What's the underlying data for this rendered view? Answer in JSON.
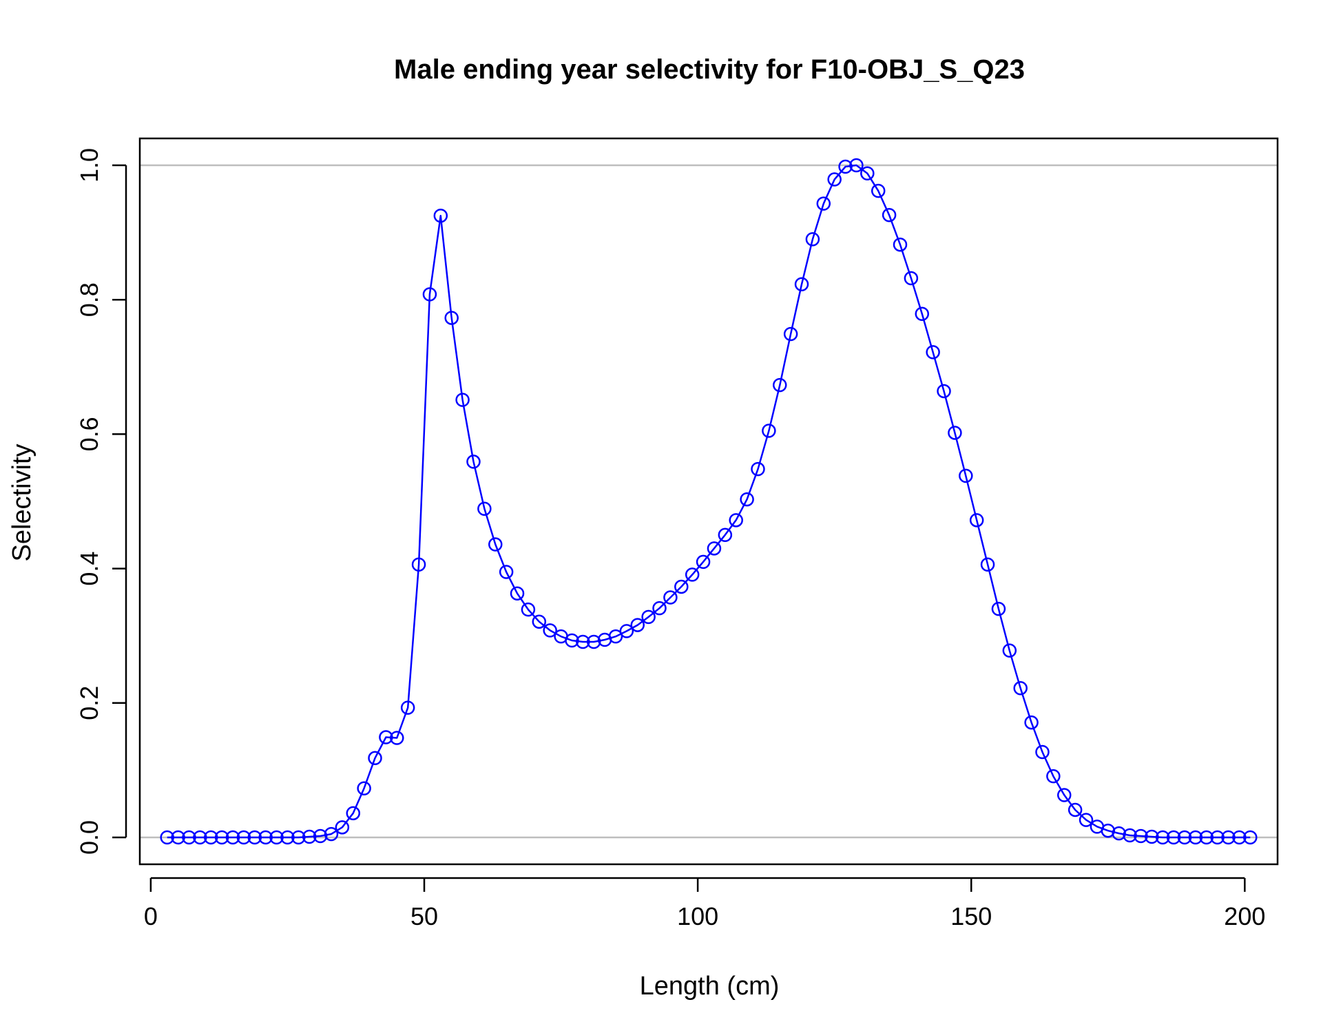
{
  "chart_data": {
    "type": "line",
    "title": "Male ending year selectivity for F10-OBJ_S_Q23",
    "xlabel": "Length (cm)",
    "ylabel": "Selectivity",
    "xlim": [
      -2,
      206
    ],
    "ylim": [
      -0.04,
      1.04
    ],
    "x_ticks": [
      0,
      50,
      100,
      150,
      200
    ],
    "y_ticks": [
      0.0,
      0.2,
      0.4,
      0.6,
      0.8,
      1.0
    ],
    "x_tick_labels": [
      "0",
      "50",
      "100",
      "150",
      "200"
    ],
    "y_tick_labels": [
      "0.0",
      "0.2",
      "0.4",
      "0.6",
      "0.8",
      "1.0"
    ],
    "reference_lines": [
      0,
      1
    ],
    "grid": false,
    "line_color": "#0000ff",
    "reference_line_color": "#bebebe",
    "marker": "open-circle",
    "series": [
      {
        "x": [
          3,
          5,
          7,
          9,
          11,
          13,
          15,
          17,
          19,
          21,
          23,
          25,
          27,
          29,
          31,
          33,
          35,
          37,
          39,
          41,
          43,
          45,
          47,
          49,
          51,
          53,
          55,
          57,
          59,
          61,
          63,
          65,
          67,
          69,
          71,
          73,
          75,
          77,
          79,
          81,
          83,
          85,
          87,
          89,
          91,
          93,
          95,
          97,
          99,
          101,
          103,
          105,
          107,
          109,
          111,
          113,
          115,
          117,
          119,
          121,
          123,
          125,
          127,
          129,
          131,
          133,
          135,
          137,
          139,
          141,
          143,
          145,
          147,
          149,
          151,
          153,
          155,
          157,
          159,
          161,
          163,
          165,
          167,
          169,
          171,
          173,
          175,
          177,
          179,
          181,
          183,
          185,
          187,
          189,
          191,
          193,
          195,
          197,
          199,
          201
        ],
        "values": [
          0,
          0,
          0,
          0,
          0,
          0,
          0,
          0,
          0,
          0,
          0,
          0,
          0,
          0.001,
          0.002,
          0.005,
          0.015,
          0.036,
          0.073,
          0.118,
          0.149,
          0.148,
          0.193,
          0.406,
          0.808,
          0.925,
          0.773,
          0.651,
          0.559,
          0.489,
          0.436,
          0.395,
          0.363,
          0.339,
          0.321,
          0.308,
          0.299,
          0.293,
          0.291,
          0.291,
          0.294,
          0.299,
          0.307,
          0.316,
          0.328,
          0.341,
          0.357,
          0.373,
          0.391,
          0.41,
          0.43,
          0.45,
          0.472,
          0.503,
          0.548,
          0.605,
          0.673,
          0.749,
          0.823,
          0.89,
          0.943,
          0.979,
          0.998,
          1.0,
          0.988,
          0.962,
          0.926,
          0.882,
          0.832,
          0.779,
          0.722,
          0.664,
          0.602,
          0.538,
          0.472,
          0.406,
          0.34,
          0.278,
          0.222,
          0.171,
          0.127,
          0.091,
          0.063,
          0.041,
          0.026,
          0.016,
          0.01,
          0.006,
          0.003,
          0.002,
          0.001,
          0,
          0,
          0,
          0,
          0,
          0,
          0,
          0,
          0
        ]
      }
    ]
  }
}
